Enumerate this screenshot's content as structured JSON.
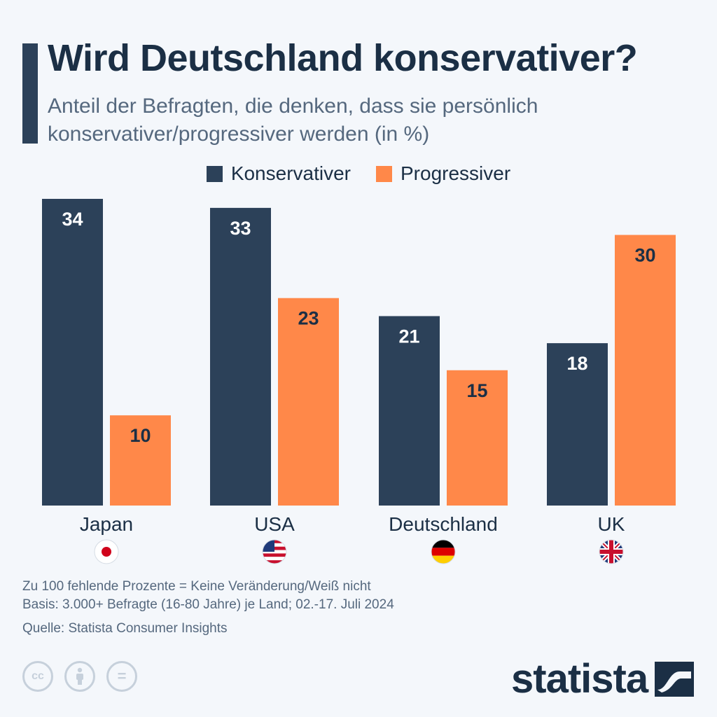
{
  "header": {
    "title": "Wird Deutschland konservativer?",
    "subtitle_line1": "Anteil der Befragten, die denken, dass sie persönlich",
    "subtitle_line2": "konservativer/progressiver werden (in %)"
  },
  "colors": {
    "konservativer": "#2c4159",
    "progressiver": "#ff8849",
    "text_dark": "#1b2f45"
  },
  "chart_data": {
    "type": "bar",
    "categories": [
      "Japan",
      "USA",
      "Deutschland",
      "UK"
    ],
    "flags": [
      "japan-flag-icon",
      "usa-flag-icon",
      "germany-flag-icon",
      "uk-flag-icon"
    ],
    "series": [
      {
        "name": "Konservativer",
        "values": [
          34,
          33,
          21,
          18
        ]
      },
      {
        "name": "Progressiver",
        "values": [
          10,
          23,
          15,
          30
        ]
      }
    ],
    "ylim": [
      0,
      34
    ],
    "legend_position": "top-center",
    "grid": false
  },
  "footer": {
    "note": "Zu 100 fehlende Prozente = Keine Veränderung/Weiß nicht",
    "basis": "Basis: 3.000+ Befragte (16-80 Jahre) je Land; 02.-17. Juli 2024",
    "source": "Quelle: Statista Consumer Insights"
  },
  "brand": {
    "name": "statista",
    "logo_icon": "statista-logo-icon",
    "license_icons": [
      "cc-icon",
      "attribution-icon",
      "no-derivatives-icon"
    ],
    "cc_label": "cc",
    "nd_label": "="
  }
}
